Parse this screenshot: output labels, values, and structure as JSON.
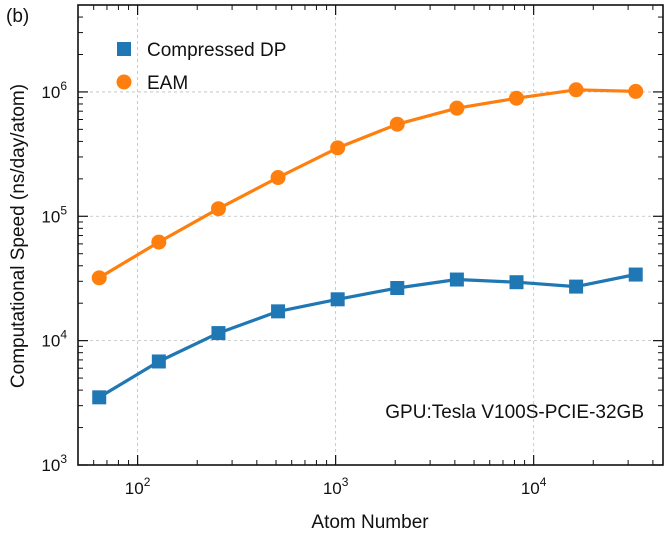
{
  "chart_data": {
    "type": "line",
    "panel_label": "(b)",
    "xlabel": "Atom Number",
    "ylabel": "Computational Speed (ns/day/atom)",
    "xscale": "log",
    "yscale": "log",
    "xlim": [
      50,
      45000
    ],
    "ylim": [
      1000,
      5000000
    ],
    "x": [
      64,
      128,
      256,
      512,
      1024,
      2048,
      4096,
      8192,
      16384,
      32768
    ],
    "series": [
      {
        "name": "Compressed DP",
        "color": "#1f77b4",
        "marker": "square",
        "values": [
          3500,
          6800,
          11500,
          17200,
          21500,
          26500,
          31000,
          29500,
          27200,
          34000
        ]
      },
      {
        "name": "EAM",
        "color": "#ff7f0e",
        "marker": "circle",
        "values": [
          32000,
          62000,
          115000,
          205000,
          355000,
          550000,
          740000,
          890000,
          1040000,
          1010000
        ]
      }
    ],
    "x_ticks": [
      {
        "value": 100,
        "base": "10",
        "exp": "2"
      },
      {
        "value": 1000,
        "base": "10",
        "exp": "3"
      },
      {
        "value": 10000,
        "base": "10",
        "exp": "4"
      }
    ],
    "y_ticks": [
      {
        "value": 1000,
        "base": "10",
        "exp": "3"
      },
      {
        "value": 10000,
        "base": "10",
        "exp": "4"
      },
      {
        "value": 100000,
        "base": "10",
        "exp": "5"
      },
      {
        "value": 1000000,
        "base": "10",
        "exp": "6"
      }
    ],
    "grid": true,
    "legend_position": "top-left",
    "annotation": "GPU:Tesla V100S-PCIE-32GB"
  }
}
